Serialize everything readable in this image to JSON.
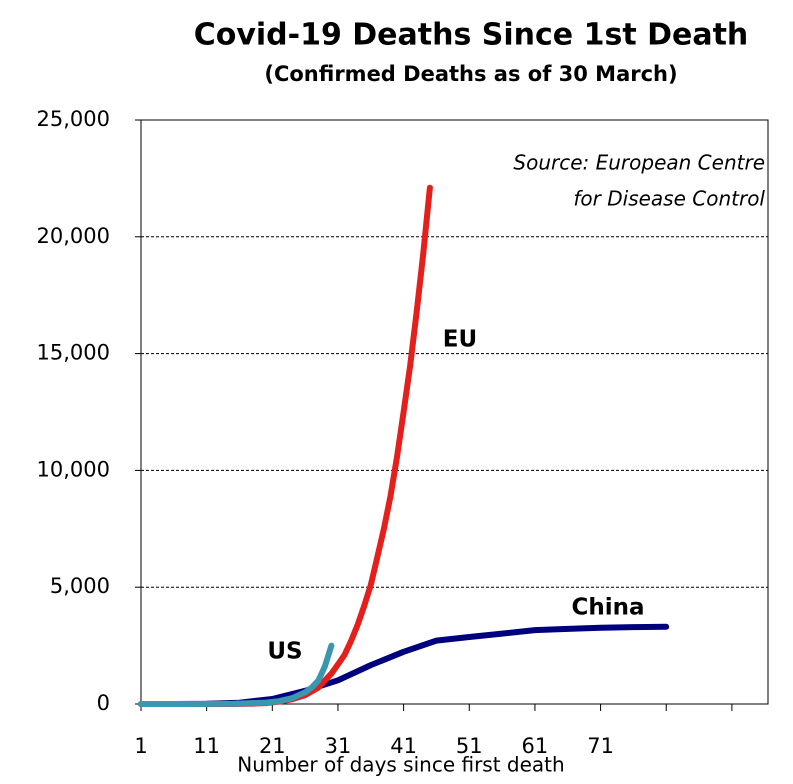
{
  "chart_data": {
    "type": "line",
    "title": "Covid-19 Deaths Since 1st Death",
    "subtitle": "(Confirmed Deaths as of 30 March)",
    "x_label": "Number of days since first death",
    "annotation": [
      "Source: European Centre",
      "for Disease Control"
    ],
    "xlim": [
      1,
      96.5
    ],
    "ylim": [
      0,
      25000
    ],
    "xticks": [
      1,
      11,
      21,
      31,
      41,
      51,
      61,
      71
    ],
    "x_minor_ticks": [
      81,
      91
    ],
    "yticks": [
      0,
      {
        "value": 5000,
        "label": "5,000"
      },
      {
        "value": 10000,
        "label": "10,000"
      },
      {
        "value": 15000,
        "label": "15,000"
      },
      {
        "value": 20000,
        "label": "20,000"
      },
      {
        "value": 25000,
        "label": "25,000"
      }
    ],
    "grid": true,
    "series": [
      {
        "name": "China",
        "color": "#00007f",
        "x": [
          1,
          6,
          11,
          16,
          21,
          26,
          31,
          36,
          41,
          46,
          51,
          56,
          61,
          66,
          71,
          76,
          81
        ],
        "values": [
          1,
          1,
          9,
          56,
          213,
          563,
          1016,
          1665,
          2236,
          2715,
          2870,
          3015,
          3162,
          3217,
          3261,
          3291,
          3305
        ]
      },
      {
        "name": "EU",
        "color": "#e3201b",
        "x": [
          1,
          15,
          16,
          18,
          20,
          22,
          24,
          26,
          28,
          30,
          31,
          32,
          33,
          34,
          35,
          36,
          37,
          38,
          39,
          40,
          41,
          42,
          43,
          44,
          45
        ],
        "values": [
          0,
          0,
          5,
          15,
          40,
          100,
          200,
          380,
          700,
          1300,
          1700,
          2100,
          2700,
          3400,
          4200,
          5100,
          6300,
          7500,
          8900,
          10600,
          12500,
          14500,
          16800,
          19300,
          22100
        ]
      },
      {
        "name": "US",
        "color": "#3a97b0",
        "x": [
          1,
          10,
          15,
          20,
          22,
          24,
          26,
          27,
          28,
          29,
          30
        ],
        "values": [
          0,
          2,
          10,
          60,
          120,
          250,
          500,
          700,
          1000,
          1600,
          2500
        ]
      }
    ]
  }
}
